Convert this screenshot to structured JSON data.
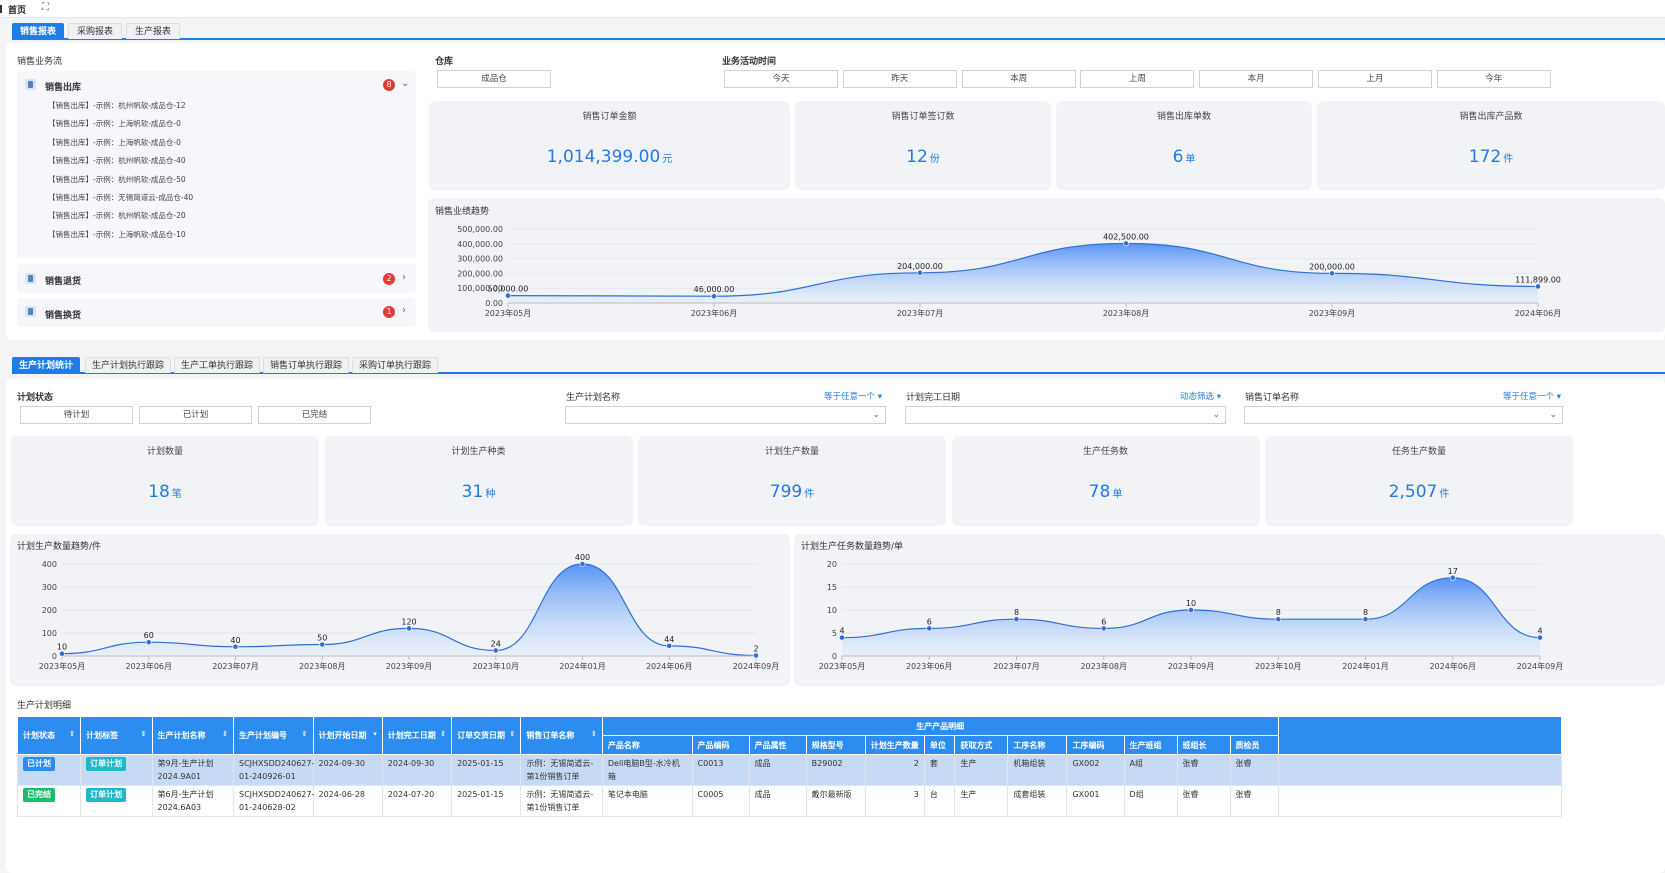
{
  "topbar": {
    "home": "首页",
    "fullscreen_icon": "expand-icon"
  },
  "reportTabs": [
    "销售报表",
    "采购报表",
    "生产报表"
  ],
  "sales": {
    "flowTitle": "销售业务流",
    "outbound": {
      "title": "销售出库",
      "badge": "8",
      "items": [
        "【销售出库】-示例：杭州帆软-成品仓-12",
        "【销售出库】-示例：上海帆软-成品仓-0",
        "【销售出库】-示例：上海帆软-成品仓-0",
        "【销售出库】-示例：杭州帆软-成品仓-40",
        "【销售出库】-示例：杭州帆软-成品仓-50",
        "【销售出库】-示例：无锡简道云-成品仓-40",
        "【销售出库】-示例：杭州帆软-成品仓-20",
        "【销售出库】-示例：上海帆软-成品仓-10"
      ]
    },
    "returns": {
      "title": "销售退货",
      "badge": "2"
    },
    "exchange": {
      "title": "销售换货",
      "badge": "1"
    },
    "warehouseLabel": "仓库",
    "warehouseValue": "成品仓",
    "timeLabel": "业务活动时间",
    "timeButtons": [
      "今天",
      "昨天",
      "本周",
      "上周",
      "本月",
      "上月",
      "今年"
    ],
    "kpis": [
      {
        "title": "销售订单金额",
        "value": "1,014,399.00",
        "unit": "元"
      },
      {
        "title": "销售订单签订数",
        "value": "12",
        "unit": "份"
      },
      {
        "title": "销售出库单数",
        "value": "6",
        "unit": "单"
      },
      {
        "title": "销售出库产品数",
        "value": "172",
        "unit": "件"
      }
    ],
    "trendTitle": "销售业绩趋势"
  },
  "prodTabs": [
    "生产计划统计",
    "生产计划执行跟踪",
    "生产工单执行跟踪",
    "销售订单执行跟踪",
    "采购订单执行跟踪"
  ],
  "production": {
    "statusLabel": "计划状态",
    "statusButtons": [
      "待计划",
      "已计划",
      "已完结"
    ],
    "filters": [
      {
        "label": "生产计划名称",
        "mode": "等于任意一个"
      },
      {
        "label": "计划完工日期",
        "mode": "动态筛选"
      },
      {
        "label": "销售订单名称",
        "mode": "等于任意一个"
      }
    ],
    "kpis": [
      {
        "title": "计划数量",
        "value": "18",
        "unit": "笔"
      },
      {
        "title": "计划生产种类",
        "value": "31",
        "unit": "种"
      },
      {
        "title": "计划生产数量",
        "value": "799",
        "unit": "件"
      },
      {
        "title": "生产任务数",
        "value": "78",
        "unit": "单"
      },
      {
        "title": "任务生产数量",
        "value": "2,507",
        "unit": "件"
      }
    ]
  },
  "chart_data": [
    {
      "type": "area",
      "title": "销售业绩趋势",
      "categories": [
        "2023年05月",
        "2023年06月",
        "2023年07月",
        "2023年08月",
        "2023年09月",
        "2024年06月"
      ],
      "values": [
        50000,
        46000,
        204000,
        402500,
        200000,
        111899
      ],
      "labels": [
        "50,000.00",
        "46,000.00",
        "204,000.00",
        "402,500.00",
        "200,000.00",
        "111,899.00"
      ],
      "yticks": [
        "0.00",
        "100,000.00",
        "200,000.00",
        "300,000.00",
        "400,000.00",
        "500,000.00"
      ],
      "ylim": [
        0,
        500000
      ]
    },
    {
      "type": "area",
      "title": "计划生产数量趋势/件",
      "categories": [
        "2023年05月",
        "2023年06月",
        "2023年07月",
        "2023年08月",
        "2023年09月",
        "2023年10月",
        "2024年01月",
        "2024年06月",
        "2024年09月"
      ],
      "values": [
        10,
        60,
        40,
        50,
        120,
        24,
        400,
        44,
        2
      ],
      "labels": [
        "10",
        "60",
        "40",
        "50",
        "120",
        "24",
        "400",
        "44",
        "2"
      ],
      "yticks": [
        "0",
        "100",
        "200",
        "300",
        "400"
      ],
      "ylim": [
        0,
        400
      ]
    },
    {
      "type": "area",
      "title": "计划生产任务数量趋势/单",
      "categories": [
        "2023年05月",
        "2023年06月",
        "2023年07月",
        "2023年08月",
        "2023年09月",
        "2023年10月",
        "2024年01月",
        "2024年06月",
        "2024年09月"
      ],
      "values": [
        4,
        6,
        8,
        6,
        10,
        8,
        8,
        17,
        4
      ],
      "labels": [
        "4",
        "6",
        "8",
        "6",
        "10",
        "8",
        "8",
        "17",
        "4"
      ],
      "yticks": [
        "0",
        "5",
        "10",
        "15",
        "20"
      ],
      "ylim": [
        0,
        20
      ]
    }
  ],
  "table": {
    "title": "生产计划明细",
    "groupHeader": "生产产品明细",
    "columns": [
      "计划状态",
      "计划标签",
      "生产计划名称",
      "生产计划编号",
      "计划开始日期",
      "计划完工日期",
      "订单交货日期",
      "销售订单名称"
    ],
    "subColumns": [
      "产品名称",
      "产品编码",
      "产品属性",
      "规格型号",
      "计划生产数量",
      "单位",
      "获取方式",
      "工序名称",
      "工序编码",
      "生产班组",
      "班组长",
      "质检员"
    ],
    "rows": [
      {
        "status": "已计划",
        "statusColor": "blue",
        "tag": "订单计划",
        "name": "第9月-生产计划2024.9A01",
        "code": "SCJHXSDD240627-01-240926-01",
        "start": "2024-09-30",
        "finish": "2024-09-30",
        "delivery": "2025-01-15",
        "order": "示例：无锡简道云-第1份销售订单",
        "product": "Dell电脑B型-水冷机箱",
        "pcode": "C0013",
        "attr": "成品",
        "spec": "B29002",
        "qty": "2",
        "unit": "套",
        "method": "生产",
        "process": "机箱组装",
        "pcodeProc": "GX002",
        "team": "A组",
        "leader": "张睿",
        "qc": "张睿"
      },
      {
        "status": "已完结",
        "statusColor": "green",
        "tag": "订单计划",
        "name": "第6月-生产计划2024.6A03",
        "code": "SCJHXSDD240627-01-240628-02",
        "start": "2024-06-28",
        "finish": "2024-07-20",
        "delivery": "2025-01-15",
        "order": "示例：无锡简道云-第1份销售订单",
        "product": "笔记本电脑",
        "pcode": "C0005",
        "attr": "成品",
        "spec": "戴尔最新版",
        "qty": "3",
        "unit": "台",
        "method": "生产",
        "process": "成套组装",
        "pcodeProc": "GX001",
        "team": "D组",
        "leader": "张睿",
        "qc": "张睿"
      }
    ]
  }
}
